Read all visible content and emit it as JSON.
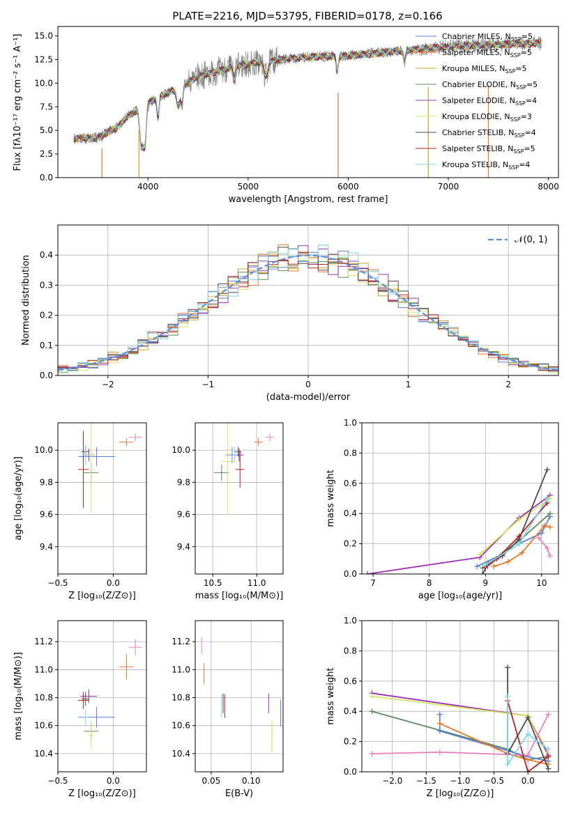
{
  "palette": {
    "chabrier_miles": "#5b7fd6",
    "salpeter_miles": "#e8762c",
    "kroupa_miles": "#c9a227",
    "chabrier_elodie": "#5c8a60",
    "salpeter_elodie": "#9b30b0",
    "kroupa_elodie": "#d4e660",
    "chabrier_stelib": "#4a4a4a",
    "salpeter_stelib": "#b22222",
    "kroupa_stelib": "#7fd4e6",
    "pink": "#e87fbf",
    "gray_spectrum": "#808080",
    "normal_curve": "#5b8fd6"
  },
  "chart_data": [
    {
      "id": "spectrum",
      "type": "line",
      "title": "PLATE=2216, MJD=53795, FIBERID=0178, z=0.166",
      "xlabel": "wavelength [Angstrom, rest frame]",
      "ylabel": "Flux [fλ10⁻¹⁷ erg cm⁻² s⁻¹ A⁻¹]",
      "xlim": [
        3100,
        8100
      ],
      "ylim": [
        0,
        16
      ],
      "xticks": [
        "4000",
        "5000",
        "6000",
        "7000",
        "8000"
      ],
      "yticks": [
        "0.0",
        "2.5",
        "5.0",
        "7.5",
        "10.0",
        "12.5",
        "15.0"
      ],
      "legend_position": "top-right",
      "legend": [
        "Chabrier MILES, N_SSP=5",
        "Salpeter MILES, N_SSP=5",
        "Kroupa MILES, N_SSP=5",
        "Chabrier ELODIE, N_SSP=5",
        "Salpeter ELODIE, N_SSP=4",
        "Kroupa ELODIE, N_SSP=3",
        "Chabrier STELIB, N_SSP=4",
        "Salpeter STELIB, N_SSP=5",
        "Kroupa STELIB, N_SSP=4"
      ],
      "continuum": [
        [
          3250,
          4.1
        ],
        [
          3500,
          4.2
        ],
        [
          3700,
          5.4
        ],
        [
          3800,
          6.5
        ],
        [
          3950,
          7.6
        ],
        [
          4100,
          8.5
        ],
        [
          4300,
          9.5
        ],
        [
          4500,
          10.7
        ],
        [
          4700,
          11.3
        ],
        [
          4900,
          11.8
        ],
        [
          5100,
          12.2
        ],
        [
          5400,
          12.6
        ],
        [
          5700,
          12.8
        ],
        [
          6000,
          12.9
        ],
        [
          6300,
          13.2
        ],
        [
          6600,
          13.5
        ],
        [
          6900,
          13.8
        ],
        [
          7200,
          14.0
        ],
        [
          7500,
          14.1
        ],
        [
          7900,
          14.2
        ]
      ]
    },
    {
      "id": "residuals",
      "type": "line",
      "xlabel": "(data-model)/error",
      "ylabel": "Normed distribution",
      "xlim": [
        -2.5,
        2.5
      ],
      "ylim": [
        0,
        0.5
      ],
      "xticks": [
        "−2",
        "−1",
        "0",
        "1",
        "2"
      ],
      "yticks": [
        "0.0",
        "0.1",
        "0.2",
        "0.3",
        "0.4"
      ],
      "legend": [
        "𝒩(0, 1)"
      ],
      "legend_position": "top-right"
    },
    {
      "id": "age_vs_Z",
      "type": "scatter",
      "xlabel": "Z [log₁₀(Z/Z⊙)]",
      "ylabel": "age  [log₁₀(age/yr)]",
      "xlim": [
        -0.5,
        0.3
      ],
      "ylim": [
        9.23,
        10.17
      ],
      "xticks": [
        "−0.5",
        "0.0"
      ],
      "yticks": [
        "9.4",
        "9.6",
        "9.8",
        "10.0"
      ],
      "points": [
        {
          "c": "chabrier_miles",
          "x": -0.15,
          "y": 9.96,
          "xe": 0.33,
          "ye": 0.12
        },
        {
          "c": "salpeter_miles",
          "x": 0.12,
          "y": 10.05,
          "xe": 0.13,
          "ye": 0.05
        },
        {
          "c": "chabrier_elodie",
          "x": -0.2,
          "y": 9.86,
          "xe": 0.13,
          "ye": 0.12
        },
        {
          "c": "salpeter_elodie",
          "x": -0.22,
          "y": 9.97,
          "xe": 0.1,
          "ye": 0.08
        },
        {
          "c": "kroupa_elodie",
          "x": -0.2,
          "y": 9.97,
          "xe": 0.05,
          "ye": 0.7
        },
        {
          "c": "chabrier_stelib",
          "x": -0.25,
          "y": 9.99,
          "xe": 0.07,
          "ye": 0.06
        },
        {
          "c": "salpeter_stelib",
          "x": -0.27,
          "y": 9.88,
          "xe": 0.1,
          "ye": 0.48
        },
        {
          "c": "kroupa_stelib",
          "x": -0.25,
          "y": 9.97,
          "xe": 0.05,
          "ye": 0.13
        },
        {
          "c": "pink",
          "x": 0.2,
          "y": 10.08,
          "xe": 0.12,
          "ye": 0.05
        }
      ]
    },
    {
      "id": "age_vs_mass",
      "type": "scatter",
      "xlabel": "mass [log₁₀(M/M⊙)]",
      "ylabel": "",
      "xlim": [
        10.3,
        11.3
      ],
      "ylim": [
        9.23,
        10.17
      ],
      "xticks": [
        "10.5",
        "11.0"
      ],
      "yticks": [
        "9.4",
        "9.6",
        "9.8",
        "10.0"
      ],
      "points": [
        {
          "c": "chabrier_miles",
          "x": 10.72,
          "y": 9.97,
          "xe": 0.15,
          "ye": 0.1
        },
        {
          "c": "salpeter_miles",
          "x": 11.02,
          "y": 10.05,
          "xe": 0.1,
          "ye": 0.05
        },
        {
          "c": "chabrier_elodie",
          "x": 10.6,
          "y": 9.86,
          "xe": 0.17,
          "ye": 0.1
        },
        {
          "c": "salpeter_elodie",
          "x": 10.8,
          "y": 9.97,
          "xe": 0.1,
          "ye": 0.08
        },
        {
          "c": "kroupa_elodie",
          "x": 10.67,
          "y": 9.93,
          "xe": 0.15,
          "ye": 0.65
        },
        {
          "c": "chabrier_stelib",
          "x": 10.79,
          "y": 9.99,
          "xe": 0.07,
          "ye": 0.06
        },
        {
          "c": "salpeter_stelib",
          "x": 10.81,
          "y": 9.88,
          "xe": 0.1,
          "ye": 0.23
        },
        {
          "c": "kroupa_stelib",
          "x": 10.75,
          "y": 9.97,
          "xe": 0.05,
          "ye": 0.1
        },
        {
          "c": "pink",
          "x": 11.15,
          "y": 10.08,
          "xe": 0.1,
          "ye": 0.05
        }
      ]
    },
    {
      "id": "massweight_vs_age",
      "type": "line",
      "xlabel": "age  [log₁₀(age/yr)]",
      "ylabel": "mass weight",
      "xlim": [
        6.8,
        10.3
      ],
      "ylim": [
        0,
        1
      ],
      "xticks": [
        "7",
        "8",
        "9",
        "10"
      ],
      "yticks": [
        "0.0",
        "0.2",
        "0.4",
        "0.6",
        "0.8",
        "1.0"
      ],
      "series": [
        {
          "c": "salpeter_elodie",
          "points": [
            [
              6.9,
              0.0
            ],
            [
              8.9,
              0.11
            ],
            [
              9.6,
              0.37
            ],
            [
              10.15,
              0.52
            ]
          ]
        },
        {
          "c": "chabrier_miles",
          "points": [
            [
              8.85,
              0.05
            ],
            [
              9.3,
              0.13
            ],
            [
              9.6,
              0.2
            ],
            [
              10.0,
              0.27
            ],
            [
              10.15,
              0.38
            ]
          ]
        },
        {
          "c": "salpeter_miles",
          "points": [
            [
              9.15,
              0.05
            ],
            [
              9.4,
              0.08
            ],
            [
              9.65,
              0.14
            ],
            [
              10.05,
              0.32
            ],
            [
              10.15,
              0.31
            ]
          ]
        },
        {
          "c": "kroupa_elodie",
          "points": [
            [
              8.9,
              0.13
            ],
            [
              9.6,
              0.36
            ],
            [
              10.15,
              0.5
            ]
          ]
        },
        {
          "c": "chabrier_elodie",
          "points": [
            [
              8.95,
              0.04
            ],
            [
              9.6,
              0.22
            ],
            [
              10.15,
              0.4
            ]
          ]
        },
        {
          "c": "chabrier_stelib",
          "points": [
            [
              8.95,
              0.0
            ],
            [
              9.05,
              0.07
            ],
            [
              9.3,
              0.12
            ],
            [
              9.6,
              0.23
            ],
            [
              10.1,
              0.69
            ]
          ]
        },
        {
          "c": "salpeter_stelib",
          "points": [
            [
              9.0,
              0.04
            ],
            [
              9.2,
              0.1
            ],
            [
              9.6,
              0.25
            ],
            [
              10.1,
              0.47
            ]
          ]
        },
        {
          "c": "kroupa_stelib",
          "points": [
            [
              9.0,
              0.06
            ],
            [
              9.6,
              0.2
            ],
            [
              10.1,
              0.5
            ]
          ]
        },
        {
          "c": "pink",
          "points": [
            [
              9.95,
              0.24
            ],
            [
              10.1,
              0.17
            ],
            [
              10.15,
              0.12
            ]
          ]
        }
      ]
    },
    {
      "id": "mass_vs_Z",
      "type": "scatter",
      "xlabel": "Z [log₁₀(Z/Z⊙)]",
      "ylabel": "mass [log₁₀(M/M⊙)]",
      "xlim": [
        -0.5,
        0.3
      ],
      "ylim": [
        10.27,
        11.35
      ],
      "xticks": [
        "−0.5",
        "0.0"
      ],
      "yticks": [
        "10.4",
        "10.6",
        "10.8",
        "11.0",
        "11.2"
      ],
      "points": [
        {
          "c": "chabrier_miles",
          "x": -0.15,
          "y": 10.66,
          "xe": 0.33,
          "ye": 0.15
        },
        {
          "c": "salpeter_miles",
          "x": 0.12,
          "y": 11.02,
          "xe": 0.13,
          "ye": 0.18
        },
        {
          "c": "chabrier_elodie",
          "x": -0.2,
          "y": 10.56,
          "xe": 0.13,
          "ye": 0.12
        },
        {
          "c": "salpeter_elodie",
          "x": -0.22,
          "y": 10.81,
          "xe": 0.15,
          "ye": 0.1
        },
        {
          "c": "kroupa_elodie",
          "x": -0.2,
          "y": 10.53,
          "xe": 0.05,
          "ye": 0.2
        },
        {
          "c": "chabrier_stelib",
          "x": -0.25,
          "y": 10.79,
          "xe": 0.07,
          "ye": 0.1
        },
        {
          "c": "salpeter_stelib",
          "x": -0.27,
          "y": 10.78,
          "xe": 0.1,
          "ye": 0.12
        },
        {
          "c": "kroupa_stelib",
          "x": -0.25,
          "y": 10.66,
          "xe": 0.05,
          "ye": 0.12
        },
        {
          "c": "pink",
          "x": 0.2,
          "y": 11.16,
          "xe": 0.12,
          "ye": 0.12
        }
      ]
    },
    {
      "id": "mass_vs_ebv",
      "type": "scatter",
      "xlabel": "E(B-V)",
      "ylabel": "",
      "xlim": [
        0.03,
        0.14
      ],
      "ylim": [
        10.27,
        11.35
      ],
      "xticks": [
        "0.05",
        "0.10"
      ],
      "yticks": [
        "10.4",
        "10.6",
        "10.8",
        "11.0",
        "11.2"
      ],
      "points": [
        {
          "c": "chabrier_miles",
          "x": 0.137,
          "y": 10.69,
          "xe": 0.0,
          "ye": 0.19
        },
        {
          "c": "salpeter_miles",
          "x": 0.041,
          "y": 10.97,
          "xe": 0.0,
          "ye": 0.15
        },
        {
          "c": "chabrier_elodie",
          "x": 0.126,
          "y": 10.53,
          "xe": 0.0,
          "ye": 0.2
        },
        {
          "c": "salpeter_elodie",
          "x": 0.122,
          "y": 10.76,
          "xe": 0.0,
          "ye": 0.14
        },
        {
          "c": "kroupa_elodie",
          "x": 0.126,
          "y": 10.52,
          "xe": 0.0,
          "ye": 0.22
        },
        {
          "c": "chabrier_stelib",
          "x": 0.065,
          "y": 10.76,
          "xe": 0.0,
          "ye": 0.14
        },
        {
          "c": "salpeter_stelib",
          "x": 0.067,
          "y": 10.74,
          "xe": 0.0,
          "ye": 0.17
        },
        {
          "c": "kroupa_stelib",
          "x": 0.063,
          "y": 10.74,
          "xe": 0.0,
          "ye": 0.17
        },
        {
          "c": "pink",
          "x": 0.038,
          "y": 11.17,
          "xe": 0.0,
          "ye": 0.12
        }
      ]
    },
    {
      "id": "massweight_vs_Z",
      "type": "line",
      "xlabel": "Z [log₁₀(Z/Z⊙)]",
      "ylabel": "mass weight",
      "xlim": [
        -2.45,
        0.45
      ],
      "ylim": [
        0,
        1
      ],
      "xticks": [
        "−2.0",
        "−1.5",
        "−1.0",
        "−0.5",
        "0.0"
      ],
      "yticks": [
        "0.0",
        "0.2",
        "0.4",
        "0.6",
        "0.8",
        "1.0"
      ],
      "series": [
        {
          "c": "salpeter_elodie",
          "points": [
            [
              -2.3,
              0.52
            ],
            [
              0.0,
              0.37
            ],
            [
              0.3,
              0.11
            ]
          ]
        },
        {
          "c": "kroupa_elodie",
          "points": [
            [
              -2.3,
              0.5
            ],
            [
              0.0,
              0.37
            ],
            [
              0.3,
              0.13
            ]
          ]
        },
        {
          "c": "chabrier_elodie",
          "points": [
            [
              -2.3,
              0.4
            ],
            [
              -0.3,
              0.15
            ],
            [
              0.0,
              0.08
            ],
            [
              0.3,
              0.1
            ]
          ]
        },
        {
          "c": "chabrier_miles",
          "points": [
            [
              -1.3,
              0.38
            ],
            [
              -1.3,
              0.27
            ],
            [
              0.0,
              0.1
            ],
            [
              0.3,
              0.07
            ]
          ]
        },
        {
          "c": "salpeter_miles",
          "points": [
            [
              -1.3,
              0.32
            ],
            [
              -0.3,
              0.12
            ],
            [
              0.0,
              0.08
            ],
            [
              0.3,
              0.05
            ]
          ]
        },
        {
          "c": "pink",
          "points": [
            [
              -2.3,
              0.12
            ],
            [
              -1.3,
              0.13
            ],
            [
              0.0,
              0.11
            ],
            [
              0.3,
              0.38
            ]
          ]
        },
        {
          "c": "chabrier_stelib",
          "points": [
            [
              -0.3,
              0.69
            ],
            [
              -0.3,
              0.12
            ],
            [
              0.0,
              0.36
            ],
            [
              0.3,
              0.02
            ]
          ]
        },
        {
          "c": "salpeter_stelib",
          "points": [
            [
              -0.3,
              0.47
            ],
            [
              0.0,
              0.0
            ],
            [
              0.3,
              0.1
            ]
          ]
        },
        {
          "c": "kroupa_stelib",
          "points": [
            [
              -0.3,
              0.5
            ],
            [
              -0.3,
              0.05
            ],
            [
              0.0,
              0.25
            ],
            [
              0.3,
              0.15
            ]
          ]
        }
      ]
    }
  ]
}
